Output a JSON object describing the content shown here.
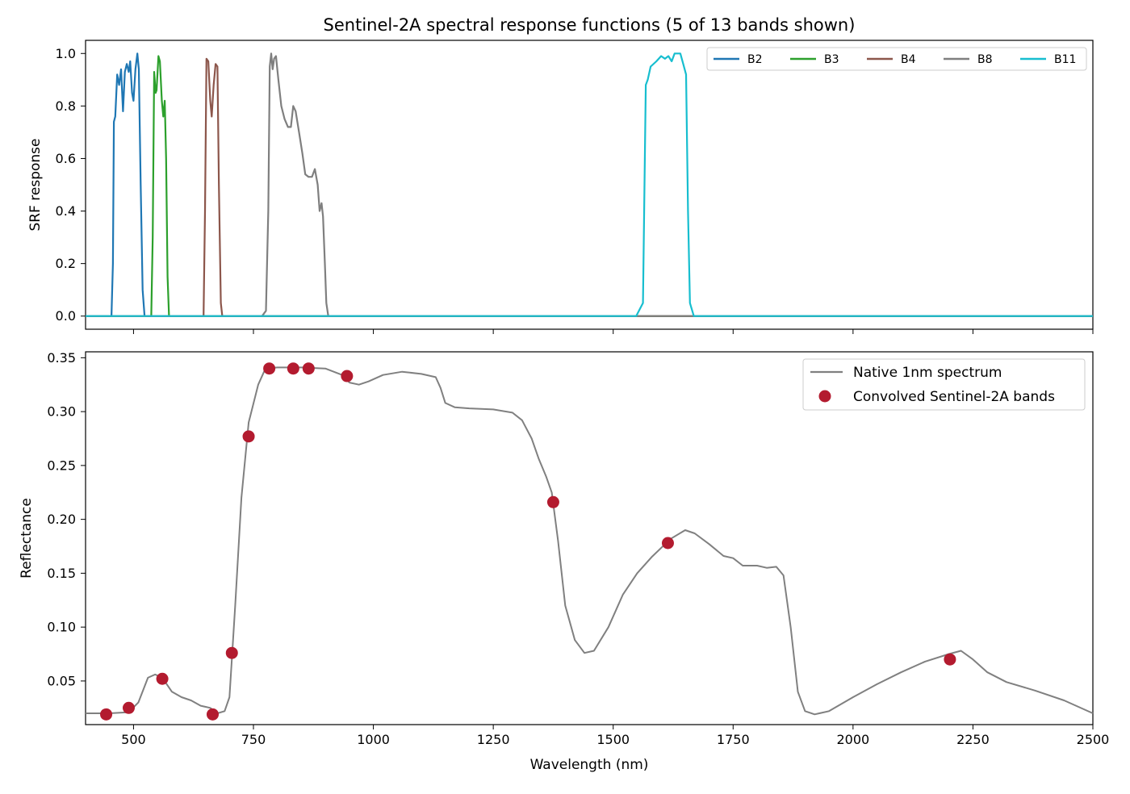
{
  "chart_data": [
    {
      "type": "line",
      "title": "Sentinel-2A spectral response functions (5 of 13 bands shown)",
      "xlabel": "",
      "ylabel": "SRF response",
      "xlim": [
        400,
        2500
      ],
      "ylim": [
        -0.05,
        1.05
      ],
      "x_ticks": [
        500,
        750,
        1000,
        1250,
        1500,
        1750,
        2000,
        2250,
        2500
      ],
      "y_ticks": [
        "0.0",
        "0.2",
        "0.4",
        "0.6",
        "0.8",
        "1.0"
      ],
      "grid": false,
      "legend_placement": "top-right",
      "series": [
        {
          "name": "B2",
          "color": "#1f77b4",
          "points": [
            [
              400,
              0
            ],
            [
              454,
              0
            ],
            [
              457,
              0.2
            ],
            [
              459,
              0.74
            ],
            [
              462,
              0.76
            ],
            [
              466,
              0.92
            ],
            [
              470,
              0.88
            ],
            [
              474,
              0.94
            ],
            [
              478,
              0.78
            ],
            [
              482,
              0.93
            ],
            [
              486,
              0.96
            ],
            [
              490,
              0.93
            ],
            [
              493,
              0.97
            ],
            [
              497,
              0.85
            ],
            [
              500,
              0.82
            ],
            [
              504,
              0.94
            ],
            [
              508,
              1.0
            ],
            [
              511,
              0.94
            ],
            [
              515,
              0.5
            ],
            [
              519,
              0.1
            ],
            [
              523,
              0
            ],
            [
              2500,
              0
            ]
          ]
        },
        {
          "name": "B3",
          "color": "#2ca02c",
          "points": [
            [
              400,
              0
            ],
            [
              537,
              0
            ],
            [
              540,
              0.3
            ],
            [
              543,
              0.93
            ],
            [
              546,
              0.85
            ],
            [
              548,
              0.86
            ],
            [
              552,
              0.99
            ],
            [
              555,
              0.97
            ],
            [
              559,
              0.82
            ],
            [
              562,
              0.76
            ],
            [
              565,
              0.82
            ],
            [
              568,
              0.6
            ],
            [
              571,
              0.15
            ],
            [
              574,
              0
            ],
            [
              2500,
              0
            ]
          ]
        },
        {
          "name": "B4",
          "color": "#8c564b",
          "points": [
            [
              400,
              0
            ],
            [
              646,
              0
            ],
            [
              649,
              0.4
            ],
            [
              652,
              0.98
            ],
            [
              656,
              0.97
            ],
            [
              660,
              0.82
            ],
            [
              663,
              0.76
            ],
            [
              667,
              0.88
            ],
            [
              671,
              0.96
            ],
            [
              675,
              0.95
            ],
            [
              678,
              0.5
            ],
            [
              682,
              0.05
            ],
            [
              685,
              0
            ],
            [
              2500,
              0
            ]
          ]
        },
        {
          "name": "B8",
          "color": "#7f7f7f",
          "points": [
            [
              400,
              0
            ],
            [
              768,
              0
            ],
            [
              776,
              0.02
            ],
            [
              781,
              0.4
            ],
            [
              784,
              0.95
            ],
            [
              787,
              1.0
            ],
            [
              790,
              0.94
            ],
            [
              793,
              0.98
            ],
            [
              797,
              0.99
            ],
            [
              802,
              0.9
            ],
            [
              808,
              0.8
            ],
            [
              815,
              0.75
            ],
            [
              822,
              0.72
            ],
            [
              828,
              0.72
            ],
            [
              833,
              0.8
            ],
            [
              838,
              0.78
            ],
            [
              845,
              0.7
            ],
            [
              852,
              0.62
            ],
            [
              858,
              0.54
            ],
            [
              865,
              0.53
            ],
            [
              872,
              0.53
            ],
            [
              878,
              0.56
            ],
            [
              884,
              0.5
            ],
            [
              888,
              0.4
            ],
            [
              892,
              0.43
            ],
            [
              895,
              0.38
            ],
            [
              899,
              0.2
            ],
            [
              902,
              0.05
            ],
            [
              906,
              0
            ],
            [
              2500,
              0
            ]
          ]
        },
        {
          "name": "B11",
          "color": "#17becf",
          "points": [
            [
              400,
              0
            ],
            [
              1548,
              0
            ],
            [
              1562,
              0.05
            ],
            [
              1568,
              0.88
            ],
            [
              1572,
              0.9
            ],
            [
              1578,
              0.95
            ],
            [
              1590,
              0.97
            ],
            [
              1600,
              0.99
            ],
            [
              1608,
              0.98
            ],
            [
              1615,
              0.99
            ],
            [
              1622,
              0.97
            ],
            [
              1628,
              1.0
            ],
            [
              1640,
              1.0
            ],
            [
              1646,
              0.96
            ],
            [
              1652,
              0.92
            ],
            [
              1656,
              0.4
            ],
            [
              1660,
              0.05
            ],
            [
              1668,
              0
            ],
            [
              2500,
              0
            ]
          ]
        }
      ]
    },
    {
      "type": "line",
      "title": "",
      "xlabel": "Wavelength (nm)",
      "ylabel": "Reflectance",
      "xlim": [
        400,
        2500
      ],
      "ylim": [
        0.0095,
        0.3555
      ],
      "x_ticks": [
        "500",
        "750",
        "1000",
        "1250",
        "1500",
        "1750",
        "2000",
        "2250",
        "2500"
      ],
      "y_ticks": [
        "0.05",
        "0.10",
        "0.15",
        "0.20",
        "0.25",
        "0.30",
        "0.35"
      ],
      "grid": false,
      "legend_placement": "top-right",
      "series": [
        {
          "name": "Native 1nm spectrum",
          "type": "line",
          "color": "#808080",
          "points": [
            [
              400,
              0.02
            ],
            [
              450,
              0.02
            ],
            [
              490,
              0.021
            ],
            [
              510,
              0.03
            ],
            [
              530,
              0.053
            ],
            [
              545,
              0.056
            ],
            [
              560,
              0.053
            ],
            [
              580,
              0.04
            ],
            [
              600,
              0.035
            ],
            [
              620,
              0.032
            ],
            [
              640,
              0.027
            ],
            [
              660,
              0.025
            ],
            [
              675,
              0.02
            ],
            [
              690,
              0.022
            ],
            [
              700,
              0.035
            ],
            [
              712,
              0.12
            ],
            [
              725,
              0.22
            ],
            [
              740,
              0.29
            ],
            [
              760,
              0.325
            ],
            [
              775,
              0.34
            ],
            [
              800,
              0.341
            ],
            [
              850,
              0.341
            ],
            [
              900,
              0.34
            ],
            [
              935,
              0.334
            ],
            [
              950,
              0.327
            ],
            [
              970,
              0.325
            ],
            [
              990,
              0.328
            ],
            [
              1020,
              0.334
            ],
            [
              1060,
              0.337
            ],
            [
              1100,
              0.335
            ],
            [
              1130,
              0.332
            ],
            [
              1140,
              0.322
            ],
            [
              1150,
              0.308
            ],
            [
              1170,
              0.304
            ],
            [
              1200,
              0.303
            ],
            [
              1250,
              0.302
            ],
            [
              1290,
              0.299
            ],
            [
              1310,
              0.292
            ],
            [
              1330,
              0.275
            ],
            [
              1345,
              0.256
            ],
            [
              1360,
              0.24
            ],
            [
              1372,
              0.225
            ],
            [
              1385,
              0.18
            ],
            [
              1400,
              0.12
            ],
            [
              1420,
              0.088
            ],
            [
              1440,
              0.076
            ],
            [
              1460,
              0.078
            ],
            [
              1490,
              0.1
            ],
            [
              1520,
              0.13
            ],
            [
              1550,
              0.15
            ],
            [
              1580,
              0.165
            ],
            [
              1620,
              0.182
            ],
            [
              1650,
              0.19
            ],
            [
              1670,
              0.187
            ],
            [
              1700,
              0.177
            ],
            [
              1730,
              0.166
            ],
            [
              1750,
              0.164
            ],
            [
              1770,
              0.157
            ],
            [
              1800,
              0.157
            ],
            [
              1820,
              0.155
            ],
            [
              1840,
              0.156
            ],
            [
              1855,
              0.148
            ],
            [
              1870,
              0.1
            ],
            [
              1885,
              0.04
            ],
            [
              1900,
              0.022
            ],
            [
              1920,
              0.019
            ],
            [
              1950,
              0.022
            ],
            [
              2000,
              0.035
            ],
            [
              2050,
              0.047
            ],
            [
              2100,
              0.058
            ],
            [
              2150,
              0.068
            ],
            [
              2200,
              0.075
            ],
            [
              2225,
              0.078
            ],
            [
              2250,
              0.07
            ],
            [
              2280,
              0.058
            ],
            [
              2320,
              0.049
            ],
            [
              2380,
              0.041
            ],
            [
              2440,
              0.032
            ],
            [
              2500,
              0.02
            ]
          ]
        },
        {
          "name": "Convolved Sentinel-2A bands",
          "type": "scatter",
          "color": "#b31b2f",
          "points": [
            [
              443,
              0.019
            ],
            [
              490,
              0.025
            ],
            [
              560,
              0.052
            ],
            [
              665,
              0.019
            ],
            [
              705,
              0.076
            ],
            [
              740,
              0.277
            ],
            [
              783,
              0.34
            ],
            [
              833,
              0.34
            ],
            [
              865,
              0.34
            ],
            [
              945,
              0.333
            ],
            [
              1375,
              0.216
            ],
            [
              1614,
              0.178
            ],
            [
              2202,
              0.07
            ]
          ]
        }
      ]
    }
  ]
}
